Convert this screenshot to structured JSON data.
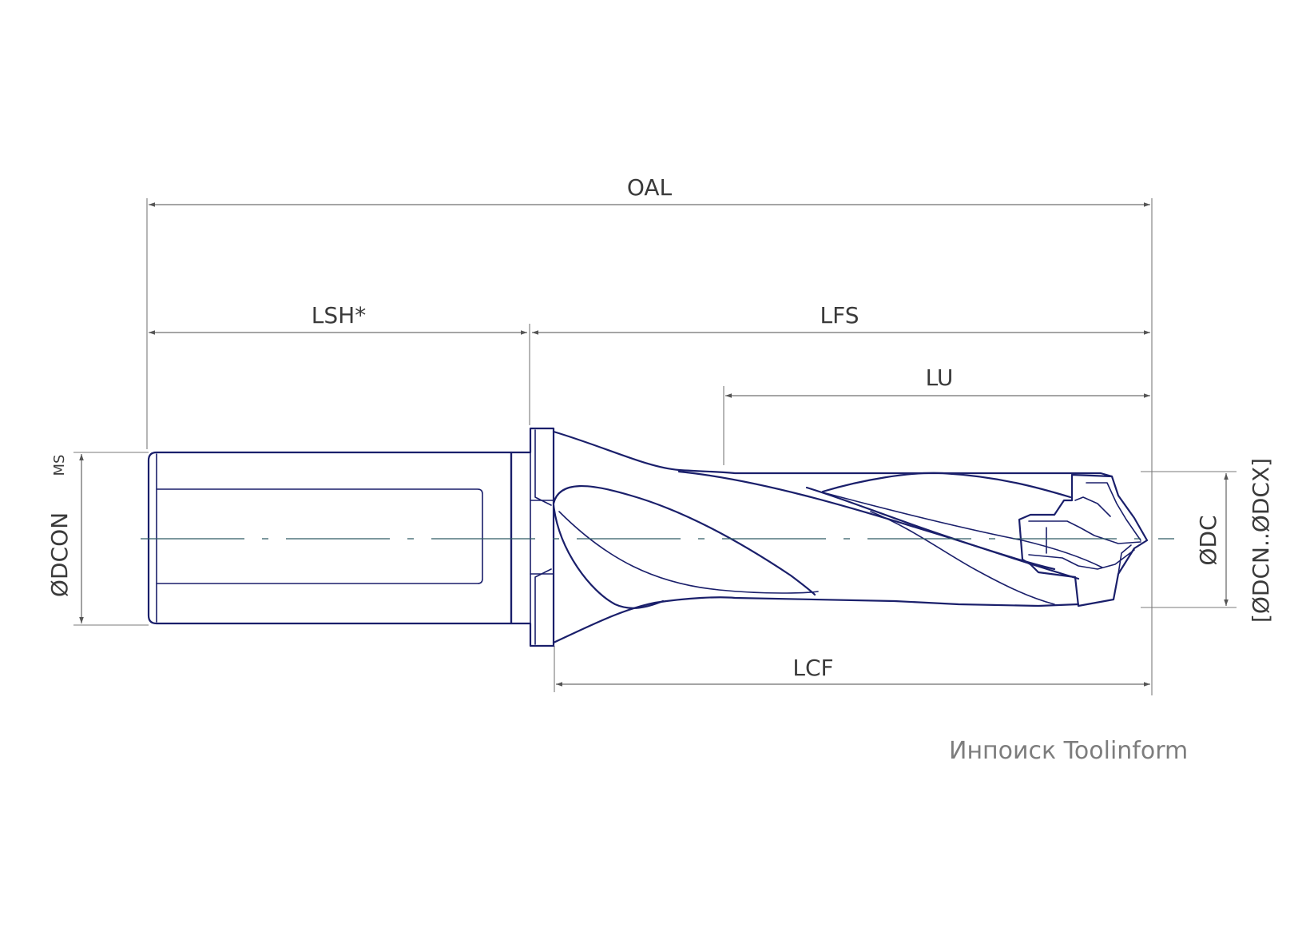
{
  "dimensions": {
    "oal": "OAL",
    "lsh": "LSH*",
    "lfs": "LFS",
    "lu": "LU",
    "lcf": "LCF",
    "dcon": "ØDCON",
    "dcon_sub": "MS",
    "dc": "ØDC",
    "dcn_dcx": "[ØDCN..ØDCX]"
  },
  "watermark": "Инпоиск Toolinform",
  "colors": {
    "tool_outline": "#1a1f6b",
    "dimension": "#6f6f6f",
    "centerline": "#2f5a63",
    "watermark": "#7d7d7d"
  }
}
